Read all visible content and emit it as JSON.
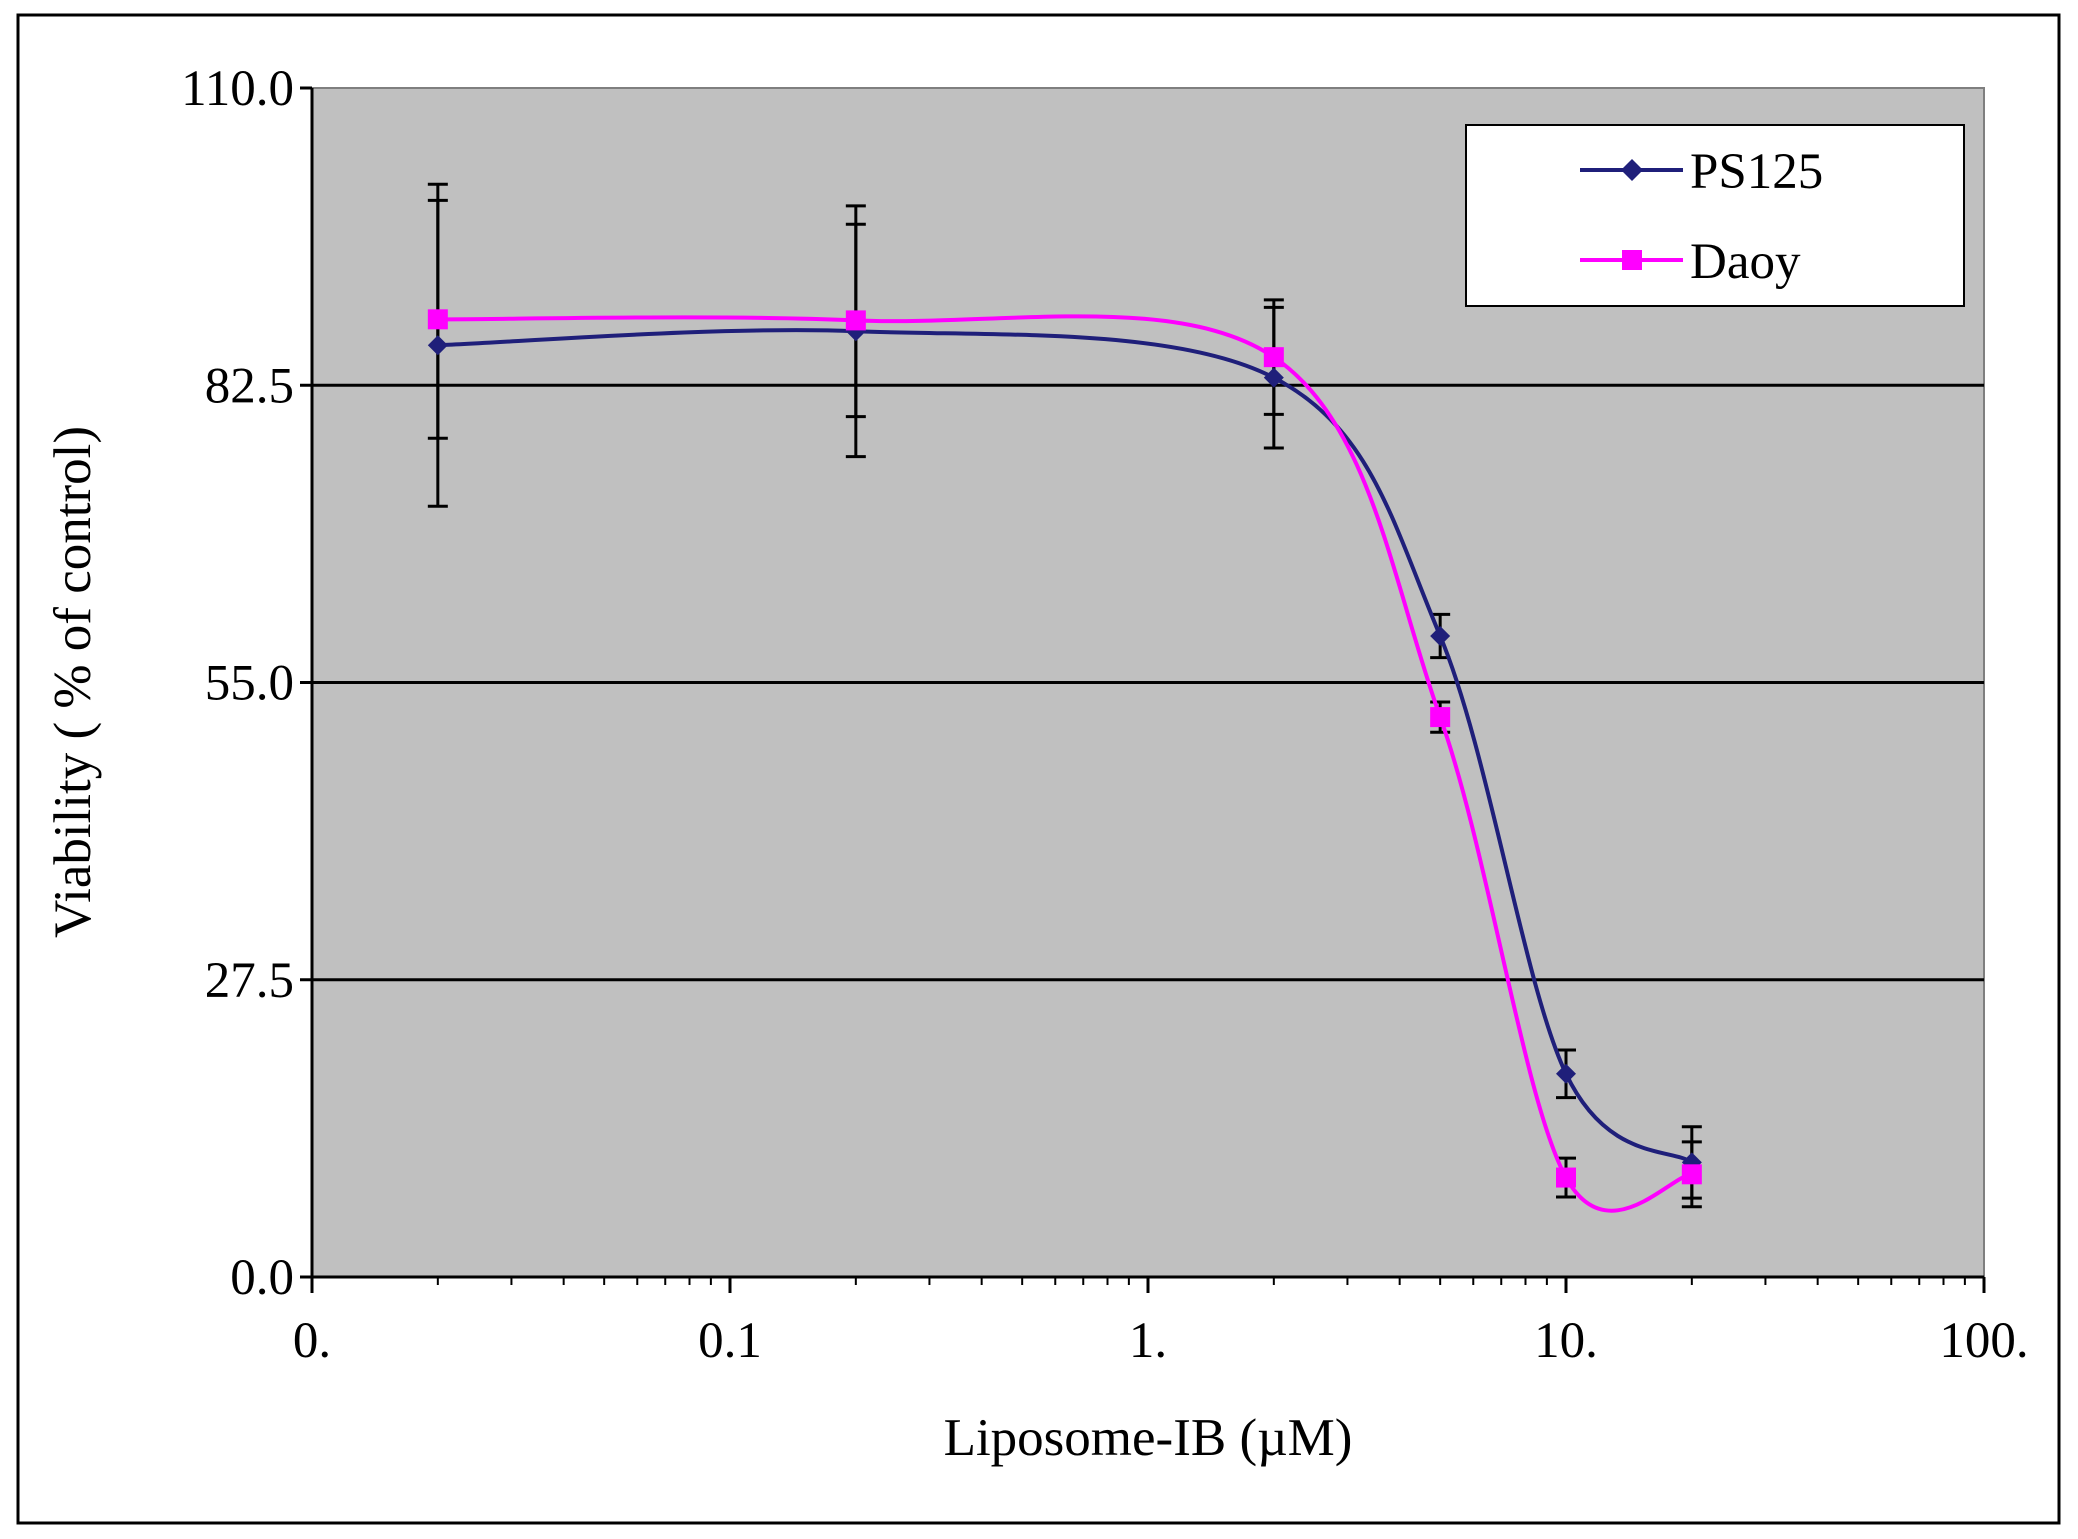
{
  "chart_data": {
    "type": "line",
    "xscale": "log",
    "xlabel": "Liposome-IB (µM)",
    "ylabel": "Viability  ( % of control)",
    "xlim": [
      0.01,
      100
    ],
    "ylim": [
      0,
      110
    ],
    "x_ticks": [
      {
        "value": 0.01,
        "label": "0."
      },
      {
        "value": 0.1,
        "label": "0.1"
      },
      {
        "value": 1,
        "label": "1."
      },
      {
        "value": 10,
        "label": "10."
      },
      {
        "value": 100,
        "label": "100."
      }
    ],
    "y_ticks": [
      {
        "value": 0,
        "label": "0.0"
      },
      {
        "value": 27.5,
        "label": "27.5"
      },
      {
        "value": 55,
        "label": "55.0"
      },
      {
        "value": 82.5,
        "label": "82.5"
      },
      {
        "value": 110,
        "label": "110.0"
      }
    ],
    "grid": "horizontal",
    "legend_position": "top-right",
    "series": [
      {
        "name": "PS125",
        "color": "#1f1f7a",
        "marker": "diamond",
        "x": [
          0.02,
          0.2,
          2,
          5,
          10,
          20
        ],
        "y": [
          86.2,
          87.5,
          83.2,
          59.3,
          18.8,
          10.6
        ],
        "yerr": [
          14.9,
          11.6,
          6.5,
          2.0,
          2.2,
          3.3
        ]
      },
      {
        "name": "Daoy",
        "color": "#ff00ff",
        "marker": "square",
        "x": [
          0.02,
          0.2,
          2,
          5,
          10,
          20
        ],
        "y": [
          88.6,
          88.5,
          85.1,
          51.8,
          9.2,
          9.5
        ],
        "yerr": [
          11.0,
          8.9,
          5.3,
          1.4,
          1.8,
          3.0
        ]
      }
    ]
  },
  "colors": {
    "plot_background": "#c0c0c0",
    "grid": "#000000",
    "error_bars": "#000000",
    "frame": "#000000"
  }
}
